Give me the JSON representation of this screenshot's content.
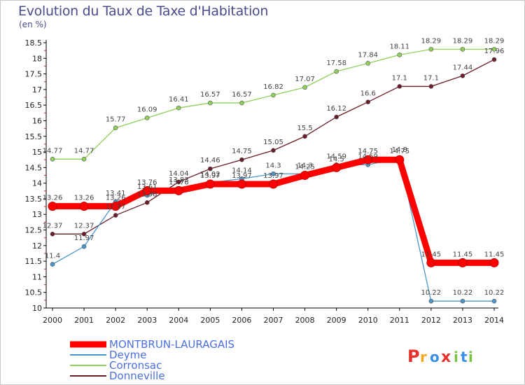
{
  "header": {
    "title": "Evolution du Taux de Taxe d'Habitation",
    "subtitle": "(en %)"
  },
  "logo": {
    "text": "Proxiti",
    "letters": [
      "P",
      "r",
      "o",
      "x",
      "i",
      "t",
      "i"
    ],
    "letter_colors": [
      "#e8302a",
      "#f5a623",
      "#3a8ee6",
      "#e8302a",
      "#7cc242",
      "#3a8ee6",
      "#7cc242"
    ]
  },
  "chart_data": {
    "type": "line",
    "x": [
      2000,
      2001,
      2002,
      2003,
      2004,
      2005,
      2006,
      2007,
      2008,
      2009,
      2010,
      2011,
      2012,
      2013,
      2014
    ],
    "xlabel": "",
    "ylabel": "",
    "ylim": [
      10,
      18.5
    ],
    "yticks": [
      10,
      10.5,
      11,
      11.5,
      12,
      12.5,
      13,
      13.5,
      14,
      14.5,
      15,
      15.5,
      16,
      16.5,
      17,
      17.5,
      18,
      18.5
    ],
    "grid": false,
    "legend_position": "bottom-left",
    "series": [
      {
        "name": "MONTBRUN-LAURAGAIS",
        "color": "#ff0000",
        "values": [
          13.26,
          13.26,
          13.26,
          13.76,
          13.76,
          13.97,
          13.97,
          13.97,
          14.25,
          14.5,
          14.75,
          14.75,
          11.45,
          11.45,
          11.45
        ],
        "labels": [
          "13.26",
          "13.26",
          "13.26",
          "13.76",
          "13.76",
          "13.97",
          "13.97",
          "13.97",
          "14.25",
          "14.5",
          "14.75",
          "14.75",
          "11.45",
          "11.45",
          "11.45"
        ]
      },
      {
        "name": "Deyme",
        "color": "#4b95c8",
        "values": [
          11.4,
          11.97,
          13.41,
          13.61,
          13.83,
          14.02,
          14.14,
          14.3,
          14.3,
          14.59,
          14.59,
          14.8,
          10.22,
          10.22,
          10.22
        ],
        "labels": [
          "11.4",
          "11.97",
          "13.41",
          "13.61",
          "13.83",
          "14.02",
          "14.14",
          "14.3",
          "14.3",
          "14.59",
          "14.59",
          "14.8",
          "10.22",
          "10.22",
          "10.22"
        ]
      },
      {
        "name": "Corronsac",
        "color": "#8fd05a",
        "values": [
          14.77,
          14.77,
          15.77,
          16.09,
          16.41,
          16.57,
          16.57,
          16.82,
          17.07,
          17.58,
          17.84,
          18.11,
          18.29,
          18.29,
          18.29
        ],
        "labels": [
          "14.77",
          "14.77",
          "15.77",
          "16.09",
          "16.41",
          "16.57",
          "16.57",
          "16.82",
          "17.07",
          "17.58",
          "17.84",
          "18.11",
          "18.29",
          "18.29",
          "18.29"
        ]
      },
      {
        "name": "Donneville",
        "color": "#6b1d28",
        "values": [
          12.37,
          12.37,
          12.97,
          13.38,
          14.04,
          14.46,
          14.75,
          15.05,
          15.5,
          16.12,
          16.6,
          17.1,
          17.1,
          17.44,
          17.96
        ],
        "labels": [
          "12.37",
          "12.37",
          "12.97",
          "13.38",
          "14.04",
          "14.46",
          "14.75",
          "15.05",
          "15.5",
          "16.12",
          "16.6",
          "17.1",
          "17.1",
          "17.44",
          "17.96"
        ]
      }
    ]
  }
}
